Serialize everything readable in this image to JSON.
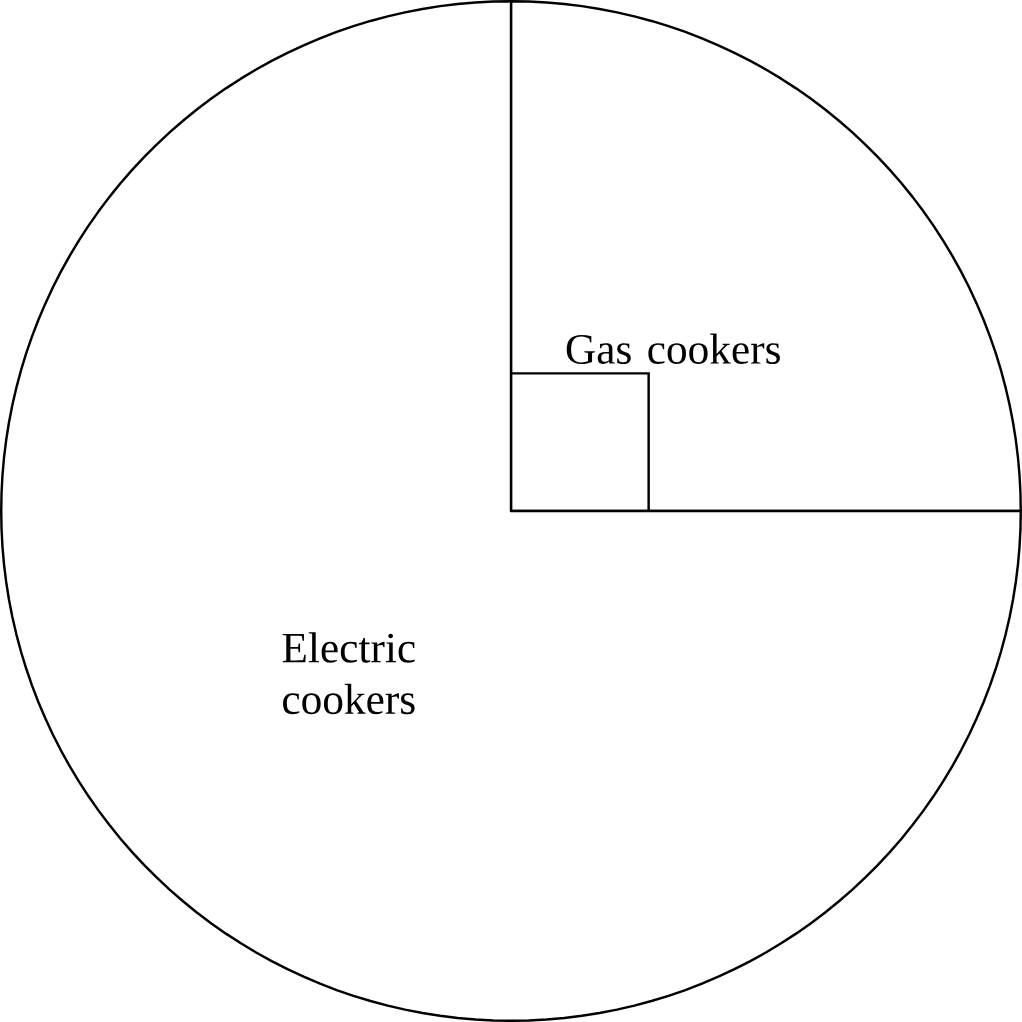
{
  "chart_data": {
    "type": "pie",
    "categories": [
      "Gas cookers",
      "Electric cookers"
    ],
    "values": [
      25,
      75
    ],
    "colors": [
      "#ffffff",
      "#ffffff"
    ]
  }
}
